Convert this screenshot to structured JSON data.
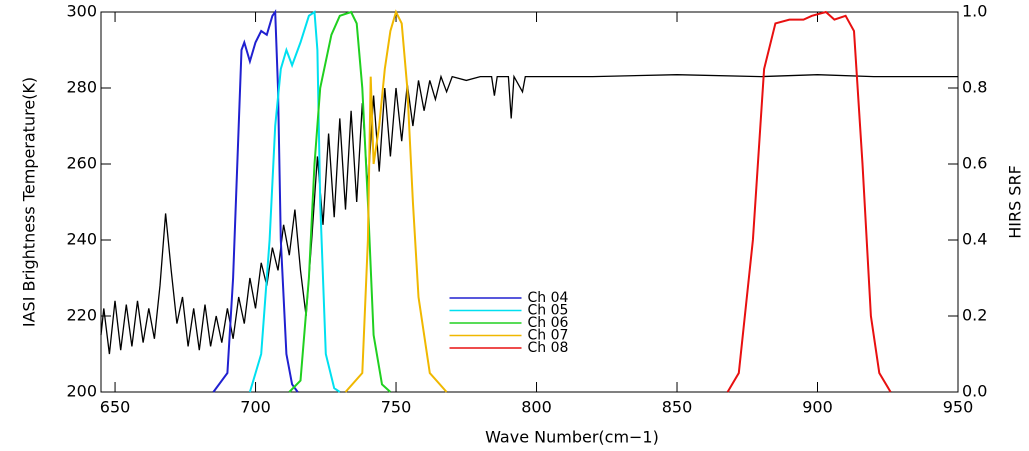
{
  "chart_data": {
    "type": "line",
    "xlabel": "Wave Number(cm−1)",
    "ylabel": "IASI Brightness Temperature(K)",
    "y2label": "HIRS SRF",
    "xlim": [
      645,
      950
    ],
    "xticks": [
      650,
      700,
      750,
      800,
      850,
      900,
      950
    ],
    "ylim": [
      200,
      300
    ],
    "yticks": [
      200,
      220,
      240,
      260,
      280,
      300
    ],
    "y2lim": [
      0,
      1
    ],
    "y2ticks": [
      {
        "value": 0,
        "label": "0.0"
      },
      0.2,
      0.4,
      0.6,
      0.8,
      {
        "value": 1,
        "label": "1.0"
      }
    ],
    "legend": "bottom-center",
    "series": [
      {
        "color": "#000000",
        "axis": "y",
        "x": [
          645,
          646,
          648,
          650,
          652,
          654,
          656,
          658,
          660,
          662,
          664,
          666,
          668,
          670,
          672,
          674,
          676,
          678,
          680,
          682,
          684,
          686,
          688,
          690,
          692,
          694,
          696,
          698,
          700,
          702,
          704,
          706,
          708,
          710,
          712,
          714,
          716,
          718,
          720,
          722,
          724,
          726,
          728,
          730,
          732,
          734,
          736,
          738,
          740,
          742,
          744,
          746,
          748,
          750,
          752,
          754,
          756,
          758,
          760,
          762,
          764,
          766,
          768,
          770,
          775,
          780,
          784,
          785,
          786,
          790,
          791,
          792,
          795,
          796,
          800,
          820,
          850,
          880,
          900,
          920,
          950
        ],
        "values": [
          215,
          222,
          210,
          224,
          211,
          223,
          212,
          224,
          213,
          222,
          214,
          228,
          247,
          232,
          218,
          225,
          212,
          222,
          211,
          223,
          212,
          220,
          213,
          222,
          214,
          225,
          218,
          230,
          222,
          234,
          228,
          238,
          232,
          244,
          236,
          248,
          232,
          220,
          240,
          262,
          244,
          268,
          246,
          272,
          248,
          274,
          250,
          276,
          254,
          278,
          258,
          280,
          262,
          280,
          266,
          281,
          270,
          282,
          274,
          282,
          277,
          283,
          279,
          283,
          282,
          283,
          283,
          278,
          283,
          283,
          272,
          283,
          279,
          283,
          283,
          283,
          283.5,
          283,
          283.5,
          283,
          283
        ]
      },
      {
        "name": "Ch 04",
        "color": "#2020d0",
        "axis": "y2",
        "x": [
          685,
          690,
          692,
          694,
          695,
          696,
          698,
          700,
          702,
          704,
          706,
          707,
          708,
          709,
          711,
          713,
          715
        ],
        "values": [
          0,
          0.05,
          0.3,
          0.7,
          0.9,
          0.92,
          0.87,
          0.92,
          0.95,
          0.94,
          0.99,
          1.0,
          0.8,
          0.4,
          0.1,
          0.02,
          0
        ]
      },
      {
        "name": "Ch 05",
        "color": "#00e0f0",
        "axis": "y2",
        "x": [
          698,
          702,
          705,
          707,
          709,
          711,
          713,
          716,
          719,
          721,
          722,
          723,
          725,
          728,
          730
        ],
        "values": [
          0,
          0.1,
          0.4,
          0.7,
          0.85,
          0.9,
          0.86,
          0.92,
          0.99,
          1.0,
          0.9,
          0.5,
          0.1,
          0.01,
          0
        ]
      },
      {
        "name": "Ch 06",
        "color": "#20d020",
        "axis": "y2",
        "x": [
          712,
          716,
          719,
          721,
          723,
          727,
          730,
          734,
          736,
          738,
          740,
          742,
          745,
          748
        ],
        "values": [
          0,
          0.03,
          0.3,
          0.6,
          0.8,
          0.94,
          0.99,
          1.0,
          0.97,
          0.8,
          0.5,
          0.15,
          0.02,
          0
        ]
      },
      {
        "name": "Ch 07",
        "color": "#f0b800",
        "axis": "y2",
        "x": [
          732,
          738,
          740,
          741,
          742,
          744,
          746,
          748,
          750,
          752,
          754,
          756,
          758,
          762,
          768
        ],
        "values": [
          0,
          0.05,
          0.4,
          0.83,
          0.6,
          0.7,
          0.85,
          0.95,
          1.0,
          0.97,
          0.8,
          0.5,
          0.25,
          0.05,
          0
        ]
      },
      {
        "name": "Ch 08",
        "color": "#e81010",
        "axis": "y2",
        "x": [
          868,
          872,
          877,
          881,
          885,
          890,
          895,
          898,
          903,
          906,
          910,
          913,
          916,
          919,
          922,
          926
        ],
        "values": [
          0,
          0.05,
          0.4,
          0.85,
          0.97,
          0.98,
          0.98,
          0.99,
          1.0,
          0.98,
          0.99,
          0.95,
          0.6,
          0.2,
          0.05,
          0
        ]
      }
    ]
  }
}
